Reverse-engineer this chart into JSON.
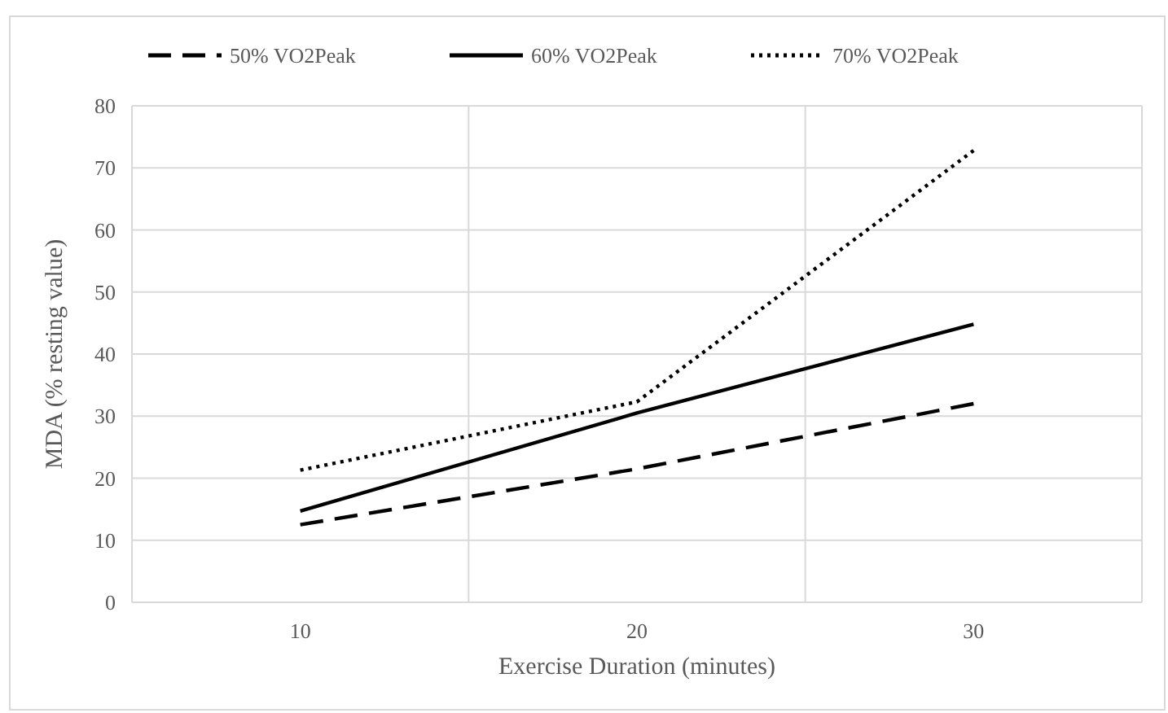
{
  "chart_data": {
    "type": "line",
    "xlabel": "Exercise Duration (minutes)",
    "ylabel": "MDA (% resting value)",
    "categories": [
      "10",
      "20",
      "30"
    ],
    "series": [
      {
        "name": "50% VO2Peak",
        "color": "#000000",
        "line_style": "dashed",
        "values": [
          12.5,
          21.5,
          32
        ]
      },
      {
        "name": "60% VO2Peak",
        "color": "#000000",
        "line_style": "solid",
        "values": [
          14.7,
          30.5,
          44.8
        ]
      },
      {
        "name": "70% VO2Peak",
        "color": "#000000",
        "line_style": "dotted",
        "values": [
          21.3,
          32.3,
          72.8
        ]
      }
    ],
    "ylim": [
      0,
      80
    ],
    "yticks": [
      0,
      10,
      20,
      30,
      40,
      50,
      60,
      70,
      80
    ],
    "grid": true,
    "legend": "top",
    "marker": "none"
  }
}
